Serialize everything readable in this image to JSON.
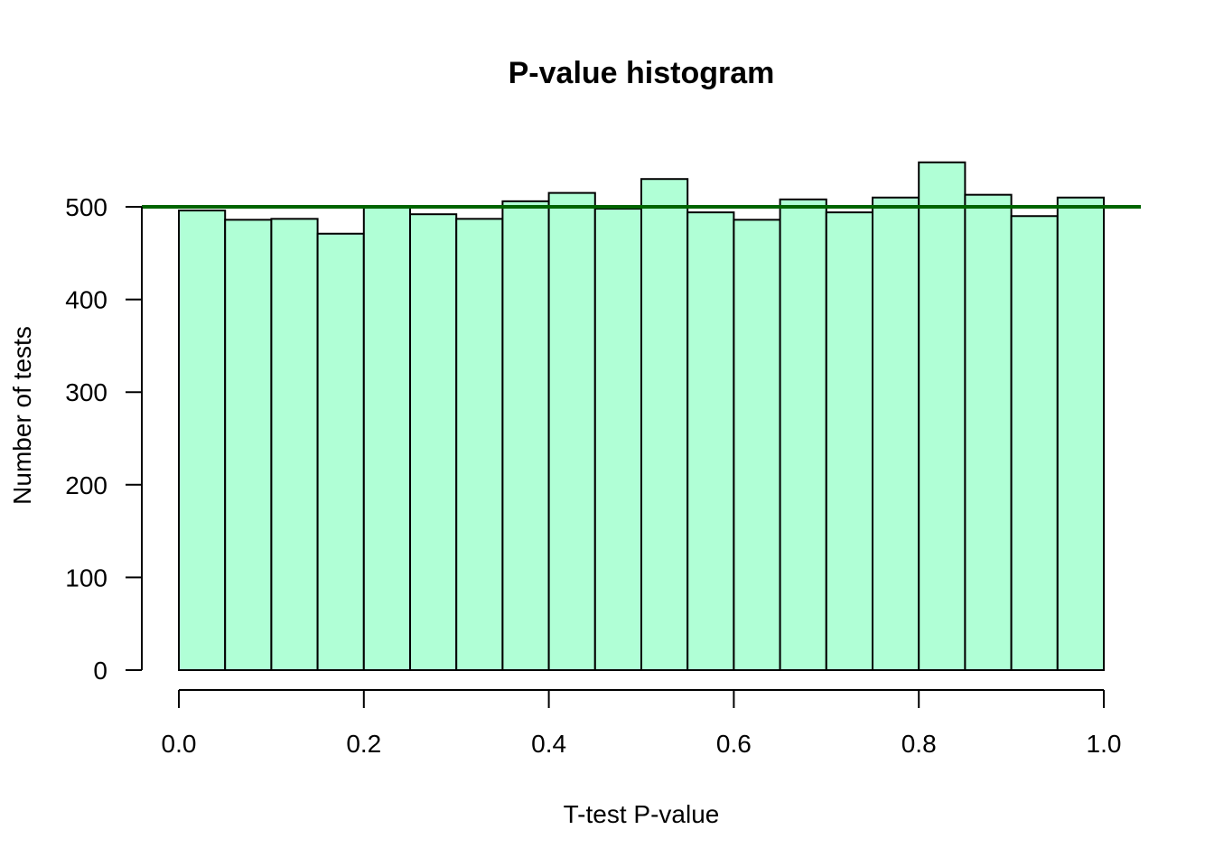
{
  "chart_data": {
    "type": "bar",
    "title": "P-value histogram",
    "xlabel": "T-test P-value",
    "ylabel": "Number of tests",
    "bin_edges": [
      0.0,
      0.05,
      0.1,
      0.15,
      0.2,
      0.25,
      0.3,
      0.35,
      0.4,
      0.45,
      0.5,
      0.55,
      0.6,
      0.65,
      0.7,
      0.75,
      0.8,
      0.85,
      0.9,
      0.95,
      1.0
    ],
    "values": [
      496,
      486,
      487,
      471,
      499,
      492,
      487,
      506,
      515,
      498,
      530,
      494,
      486,
      508,
      494,
      510,
      548,
      513,
      490,
      510
    ],
    "reference_line": {
      "y": 500,
      "color": "#006400"
    },
    "bar_color": "#b0ffd6",
    "x_ticks": [
      "0.0",
      "0.2",
      "0.4",
      "0.6",
      "0.8",
      "1.0"
    ],
    "y_ticks": [
      "0",
      "100",
      "200",
      "300",
      "400",
      "500"
    ],
    "xlim": [
      0.0,
      1.0
    ],
    "ylim": [
      0,
      500
    ],
    "grid": false,
    "legend": "none"
  }
}
